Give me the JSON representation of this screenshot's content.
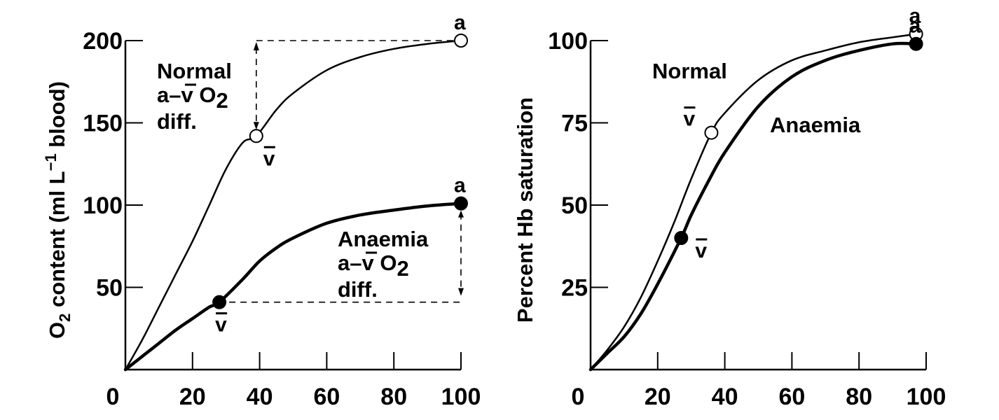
{
  "colors": {
    "ink": "#000000",
    "background": "#ffffff",
    "open_marker_fill": "#ffffff"
  },
  "chart_data": [
    {
      "id": "left",
      "type": "line",
      "title": "",
      "xlabel": "",
      "ylabel_parts": {
        "main": "O",
        "sub": "2",
        "rest": " content (ml L",
        "sup": "−1",
        "tail": " blood)"
      },
      "ylabel": "O2 content (ml L−1 blood)",
      "xlim": [
        0,
        100
      ],
      "ylim": [
        0,
        200
      ],
      "xticks": [
        0,
        20,
        40,
        60,
        80,
        100
      ],
      "xtick_labels": [
        "0",
        "20",
        "40",
        "60",
        "80",
        "100"
      ],
      "yticks": [
        50,
        100,
        150,
        200
      ],
      "ytick_labels": [
        "50",
        "100",
        "150",
        "200"
      ],
      "grid": false,
      "series": [
        {
          "name": "Normal",
          "style": "thin",
          "x": [
            0,
            5,
            10,
            15,
            20,
            25,
            30,
            35,
            39,
            45,
            50,
            60,
            70,
            80,
            90,
            100
          ],
          "y": [
            0,
            18,
            38,
            58,
            78,
            100,
            122,
            138,
            142,
            158,
            168,
            182,
            190,
            195,
            198,
            200
          ],
          "markers": [
            {
              "label": "v̄",
              "x": 39,
              "y": 142,
              "fill": "open"
            },
            {
              "label": "a",
              "x": 100,
              "y": 200,
              "fill": "open"
            }
          ]
        },
        {
          "name": "Anaemia",
          "style": "thick",
          "x": [
            0,
            5,
            10,
            15,
            20,
            25,
            28,
            35,
            40,
            45,
            50,
            60,
            70,
            80,
            90,
            100
          ],
          "y": [
            0,
            8,
            16,
            24,
            31,
            38,
            41,
            55,
            66,
            74,
            80,
            89,
            94,
            97,
            99.5,
            101
          ],
          "markers": [
            {
              "label": "v̄",
              "x": 28,
              "y": 41,
              "fill": "solid"
            },
            {
              "label": "a",
              "x": 100,
              "y": 101,
              "fill": "solid"
            }
          ]
        }
      ],
      "annotations": [
        {
          "id": "normal-diff",
          "lines": [
            "Normal",
            "a–v̄ O₂",
            "diff."
          ],
          "line1": "Normal",
          "line2_a": "a–",
          "line2_v": "v",
          "line2_o": " O",
          "line2_sub": "2",
          "line3": "diff."
        },
        {
          "id": "anaemia-diff",
          "lines": [
            "Anaemia",
            "a–v̄ O₂",
            "diff."
          ],
          "line1": "Anaemia",
          "line2_a": "a–",
          "line2_v": "v",
          "line2_o": " O",
          "line2_sub": "2",
          "line3": "diff."
        }
      ],
      "difference_arrows": [
        {
          "series": "Normal",
          "from_y": 142,
          "to_y": 200,
          "at_x": 39,
          "dashed_to_x": 100
        },
        {
          "series": "Anaemia",
          "from_y": 41,
          "to_y": 101,
          "at_x": 100,
          "dashed_from_x": 28
        }
      ]
    },
    {
      "id": "right",
      "type": "line",
      "title": "",
      "xlabel": "",
      "ylabel": "Percent Hb saturation",
      "xlim": [
        0,
        100
      ],
      "ylim": [
        0,
        100
      ],
      "xticks": [
        0,
        20,
        40,
        60,
        80,
        100
      ],
      "xtick_labels": [
        "0",
        "20",
        "40",
        "60",
        "80",
        "100"
      ],
      "yticks": [
        25,
        50,
        75,
        100
      ],
      "ytick_labels": [
        "25",
        "50",
        "75",
        "100"
      ],
      "grid": false,
      "series": [
        {
          "name": "Normal",
          "style": "thin",
          "x": [
            0,
            5,
            10,
            15,
            20,
            25,
            30,
            36,
            40,
            50,
            60,
            70,
            80,
            90,
            97
          ],
          "y": [
            0,
            6,
            13,
            22,
            33,
            45,
            58,
            72,
            78,
            88,
            94,
            97,
            99.5,
            101,
            102
          ],
          "markers": [
            {
              "label": "v̄",
              "x": 36,
              "y": 72,
              "fill": "open"
            },
            {
              "label": "a",
              "x": 97,
              "y": 102,
              "fill": "open"
            }
          ]
        },
        {
          "name": "Anaemia",
          "style": "thick",
          "x": [
            0,
            5,
            10,
            15,
            20,
            27,
            30,
            35,
            40,
            50,
            60,
            70,
            80,
            90,
            97
          ],
          "y": [
            0,
            5,
            10,
            17,
            26,
            40,
            47,
            57,
            66,
            80,
            89,
            94,
            97,
            99,
            99
          ],
          "markers": [
            {
              "label": "v̄",
              "x": 27,
              "y": 40,
              "fill": "solid"
            },
            {
              "label": "a",
              "x": 97,
              "y": 99,
              "fill": "solid"
            }
          ]
        }
      ],
      "annotations": [
        {
          "id": "normal-label",
          "text": "Normal"
        },
        {
          "id": "anaemia-label",
          "text": "Anaemia"
        }
      ]
    }
  ]
}
